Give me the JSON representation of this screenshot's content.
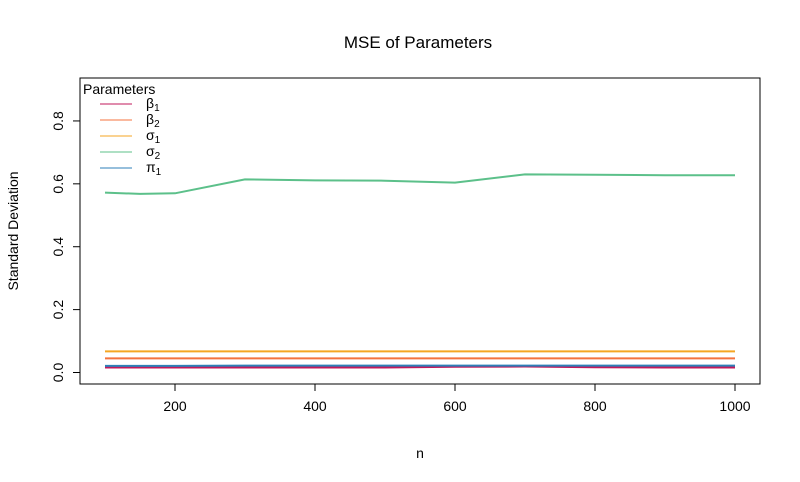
{
  "chart_data": {
    "type": "line",
    "title": "MSE of Parameters",
    "xlabel": "n",
    "ylabel": "Standard Deviation",
    "xlim": [
      100,
      1000
    ],
    "ylim": [
      0,
      0.9
    ],
    "xticks": [
      200,
      400,
      600,
      800,
      1000
    ],
    "xtick_labels": [
      "200",
      "400",
      "600",
      "800",
      "1000"
    ],
    "yticks": [
      0.0,
      0.2,
      0.4,
      0.6,
      0.8
    ],
    "ytick_labels": [
      "0.0",
      "0.2",
      "0.4",
      "0.6",
      "0.8"
    ],
    "grid": false,
    "legend": {
      "title": "Parameters",
      "placement": "top-left",
      "entries": [
        {
          "base": "β",
          "sub": "1"
        },
        {
          "base": "β",
          "sub": "2"
        },
        {
          "base": "σ",
          "sub": "1"
        },
        {
          "base": "σ",
          "sub": "2"
        },
        {
          "base": "π",
          "sub": "1"
        }
      ]
    },
    "x": [
      100,
      150,
      200,
      300,
      400,
      500,
      600,
      700,
      800,
      900,
      1000
    ],
    "series": [
      {
        "name": "β1",
        "color": "#c2185b",
        "values": [
          0.016,
          0.016,
          0.016,
          0.016,
          0.016,
          0.016,
          0.018,
          0.019,
          0.017,
          0.016,
          0.016
        ]
      },
      {
        "name": "β2",
        "color": "#f4733f",
        "values": [
          0.045,
          0.045,
          0.045,
          0.045,
          0.045,
          0.045,
          0.045,
          0.045,
          0.045,
          0.045,
          0.045
        ]
      },
      {
        "name": "σ1",
        "color": "#f5a623",
        "values": [
          0.067,
          0.067,
          0.067,
          0.067,
          0.067,
          0.067,
          0.067,
          0.067,
          0.067,
          0.067,
          0.067
        ]
      },
      {
        "name": "σ2",
        "color": "#5cc08a",
        "values": [
          0.572,
          0.568,
          0.57,
          0.614,
          0.611,
          0.61,
          0.604,
          0.63,
          0.629,
          0.627,
          0.627
        ]
      },
      {
        "name": "π1",
        "color": "#2e7fb8",
        "values": [
          0.021,
          0.021,
          0.021,
          0.022,
          0.022,
          0.022,
          0.022,
          0.022,
          0.022,
          0.022,
          0.022
        ]
      }
    ]
  }
}
